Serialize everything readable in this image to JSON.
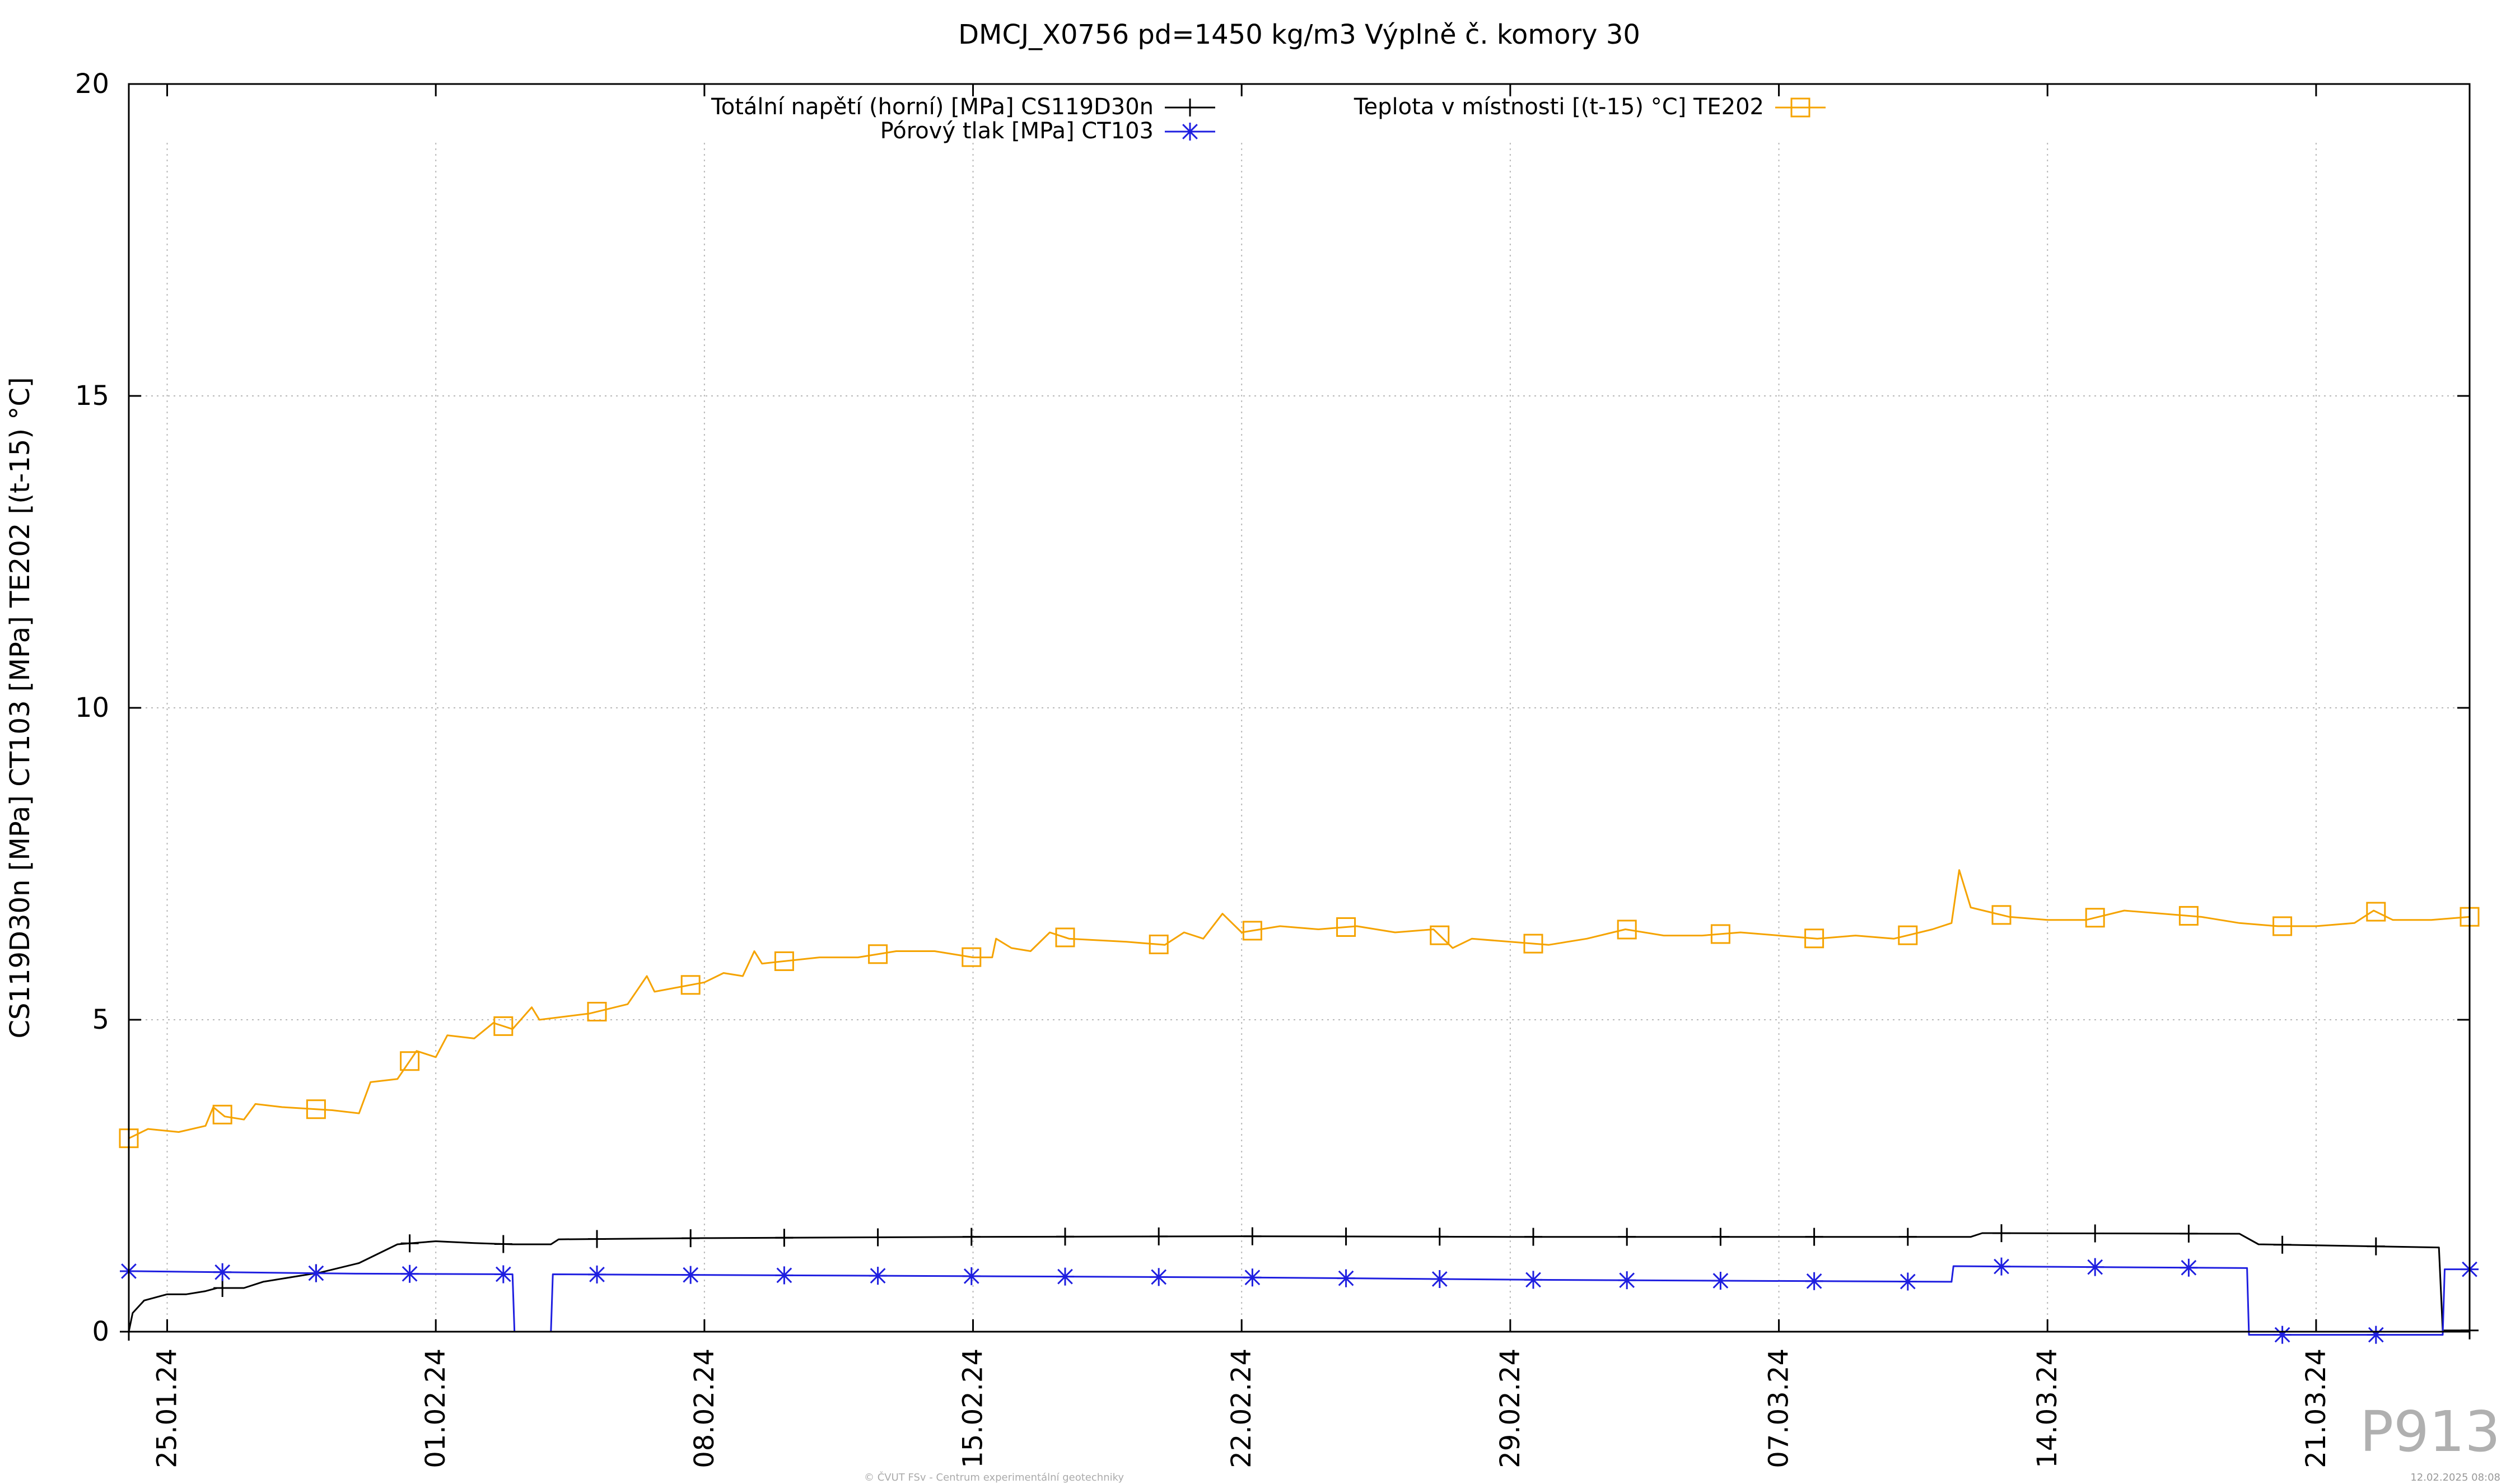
{
  "chart_data": {
    "type": "line",
    "title": "DMCJ_X0756 pd=1450 kg/m3 Výplně č. komory 30",
    "ylabel": "CS119D30n [MPa] CT103 [MPa] TE202 [(t-15) °C]",
    "xlabel": "",
    "ylim": [
      0,
      20
    ],
    "yticks": [
      "0",
      "5",
      "10",
      "15",
      "20"
    ],
    "xlim": [
      "2024-01-24",
      "2024-03-25"
    ],
    "xticks": [
      {
        "date": "2024-01-25",
        "label": "25.01.24"
      },
      {
        "date": "2024-02-01",
        "label": "01.02.24"
      },
      {
        "date": "2024-02-08",
        "label": "08.02.24"
      },
      {
        "date": "2024-02-15",
        "label": "15.02.24"
      },
      {
        "date": "2024-02-22",
        "label": "22.02.24"
      },
      {
        "date": "2024-02-29",
        "label": "29.02.24"
      },
      {
        "date": "2024-03-07",
        "label": "07.03.24"
      },
      {
        "date": "2024-03-14",
        "label": "14.03.24"
      },
      {
        "date": "2024-03-21",
        "label": "21.03.24"
      }
    ],
    "grid": true,
    "legend_position": "top",
    "series": [
      {
        "name": "Totální napětí (horní) [MPa] CS119D30n",
        "color": "#000000",
        "marker": "plus",
        "points": [
          [
            "2024-01-24",
            0.0
          ],
          [
            "2024-01-24.1",
            0.3
          ],
          [
            "2024-01-24.4",
            0.5
          ],
          [
            "2024-01-25",
            0.6
          ],
          [
            "2024-01-25.5",
            0.6
          ],
          [
            "2024-01-26",
            0.65
          ],
          [
            "2024-01-26.3",
            0.7
          ],
          [
            "2024-01-27",
            0.7
          ],
          [
            "2024-01-27.5",
            0.8
          ],
          [
            "2024-01-29",
            0.95
          ],
          [
            "2024-01-30",
            1.1
          ],
          [
            "2024-01-31",
            1.4
          ],
          [
            "2024-02-01",
            1.45
          ],
          [
            "2024-02-02",
            1.42
          ],
          [
            "2024-02-03",
            1.4
          ],
          [
            "2024-02-04",
            1.4
          ],
          [
            "2024-02-04.2",
            1.48
          ],
          [
            "2024-02-08",
            1.5
          ],
          [
            "2024-02-15",
            1.52
          ],
          [
            "2024-02-22",
            1.53
          ],
          [
            "2024-02-29",
            1.52
          ],
          [
            "2024-03-07",
            1.52
          ],
          [
            "2024-03-12",
            1.52
          ],
          [
            "2024-03-12.3",
            1.58
          ],
          [
            "2024-03-19",
            1.57
          ],
          [
            "2024-03-19.5",
            1.4
          ],
          [
            "2024-03-24.2",
            1.35
          ],
          [
            "2024-03-24.3",
            0.02
          ],
          [
            "2024-03-25",
            0.02
          ]
        ]
      },
      {
        "name": "Pórový tlak [MPa] CT103",
        "color": "#1f1fe0",
        "marker": "star",
        "points": [
          [
            "2024-01-24",
            0.97
          ],
          [
            "2024-01-30",
            0.93
          ],
          [
            "2024-02-03",
            0.92
          ],
          [
            "2024-02-03.05",
            0.0
          ],
          [
            "2024-02-04",
            0.0
          ],
          [
            "2024-02-04.05",
            0.92
          ],
          [
            "2024-02-15",
            0.89
          ],
          [
            "2024-02-22",
            0.87
          ],
          [
            "2024-03-01",
            0.83
          ],
          [
            "2024-03-11.5",
            0.8
          ],
          [
            "2024-03-11.55",
            1.05
          ],
          [
            "2024-03-19.2",
            1.02
          ],
          [
            "2024-03-19.25",
            -0.05
          ],
          [
            "2024-03-24.3",
            -0.05
          ],
          [
            "2024-03-24.35",
            1.0
          ],
          [
            "2024-03-25",
            1.0
          ]
        ]
      },
      {
        "name": "Teplota v místnosti [(t-15) °C] TE202",
        "color": "#f5a300",
        "marker": "square",
        "points": [
          [
            "2024-01-24",
            3.1
          ],
          [
            "2024-01-24.5",
            3.25
          ],
          [
            "2024-01-25.3",
            3.2
          ],
          [
            "2024-01-26",
            3.3
          ],
          [
            "2024-01-26.2",
            3.6
          ],
          [
            "2024-01-26.5",
            3.45
          ],
          [
            "2024-01-27",
            3.4
          ],
          [
            "2024-01-27.3",
            3.65
          ],
          [
            "2024-01-28",
            3.6
          ],
          [
            "2024-01-29.3",
            3.55
          ],
          [
            "2024-01-30",
            3.5
          ],
          [
            "2024-01-30.3",
            4.0
          ],
          [
            "2024-01-31",
            4.05
          ],
          [
            "2024-01-31.5",
            4.5
          ],
          [
            "2024-02-01",
            4.4
          ],
          [
            "2024-02-01.3",
            4.75
          ],
          [
            "2024-02-02",
            4.7
          ],
          [
            "2024-02-02.5",
            4.95
          ],
          [
            "2024-02-03",
            4.85
          ],
          [
            "2024-02-03.5",
            5.2
          ],
          [
            "2024-02-03.7",
            5.0
          ],
          [
            "2024-02-05",
            5.1
          ],
          [
            "2024-02-06",
            5.25
          ],
          [
            "2024-02-06.5",
            5.7
          ],
          [
            "2024-02-06.7",
            5.45
          ],
          [
            "2024-02-08",
            5.6
          ],
          [
            "2024-02-08.5",
            5.75
          ],
          [
            "2024-02-09",
            5.7
          ],
          [
            "2024-02-09.3",
            6.1
          ],
          [
            "2024-02-09.5",
            5.9
          ],
          [
            "2024-02-11",
            6.0
          ],
          [
            "2024-02-12",
            6.0
          ],
          [
            "2024-02-13",
            6.1
          ],
          [
            "2024-02-14",
            6.1
          ],
          [
            "2024-02-15",
            6.0
          ],
          [
            "2024-02-15.5",
            6.0
          ],
          [
            "2024-02-15.6",
            6.3
          ],
          [
            "2024-02-16",
            6.15
          ],
          [
            "2024-02-16.5",
            6.1
          ],
          [
            "2024-02-17",
            6.4
          ],
          [
            "2024-02-17.5",
            6.3
          ],
          [
            "2024-02-19",
            6.25
          ],
          [
            "2024-02-20",
            6.2
          ],
          [
            "2024-02-20.5",
            6.4
          ],
          [
            "2024-02-21",
            6.3
          ],
          [
            "2024-02-21.5",
            6.7
          ],
          [
            "2024-02-22",
            6.4
          ],
          [
            "2024-02-23",
            6.5
          ],
          [
            "2024-02-24",
            6.45
          ],
          [
            "2024-02-25",
            6.5
          ],
          [
            "2024-02-26",
            6.4
          ],
          [
            "2024-02-27",
            6.45
          ],
          [
            "2024-02-27.5",
            6.15
          ],
          [
            "2024-02-28",
            6.3
          ],
          [
            "2024-02-29",
            6.25
          ],
          [
            "2024-03-01",
            6.2
          ],
          [
            "2024-03-02",
            6.3
          ],
          [
            "2024-03-03",
            6.45
          ],
          [
            "2024-03-04",
            6.35
          ],
          [
            "2024-03-05",
            6.35
          ],
          [
            "2024-03-06",
            6.4
          ],
          [
            "2024-03-07",
            6.35
          ],
          [
            "2024-03-08",
            6.3
          ],
          [
            "2024-03-09",
            6.35
          ],
          [
            "2024-03-10",
            6.3
          ],
          [
            "2024-03-11",
            6.45
          ],
          [
            "2024-03-11.5",
            6.55
          ],
          [
            "2024-03-11.7",
            7.4
          ],
          [
            "2024-03-12",
            6.8
          ],
          [
            "2024-03-13",
            6.65
          ],
          [
            "2024-03-14",
            6.6
          ],
          [
            "2024-03-15",
            6.6
          ],
          [
            "2024-03-16",
            6.75
          ],
          [
            "2024-03-17",
            6.7
          ],
          [
            "2024-03-18",
            6.65
          ],
          [
            "2024-03-19",
            6.55
          ],
          [
            "2024-03-20",
            6.5
          ],
          [
            "2024-03-21",
            6.5
          ],
          [
            "2024-03-22",
            6.55
          ],
          [
            "2024-03-22.5",
            6.75
          ],
          [
            "2024-03-23",
            6.6
          ],
          [
            "2024-03-24",
            6.6
          ],
          [
            "2024-03-25",
            6.65
          ]
        ]
      }
    ]
  },
  "footer": {
    "credit": "© ČVUT FSv - Centrum experimentální geotechniky",
    "date": "12.02.2025 08:08",
    "plot_id": "P913"
  }
}
